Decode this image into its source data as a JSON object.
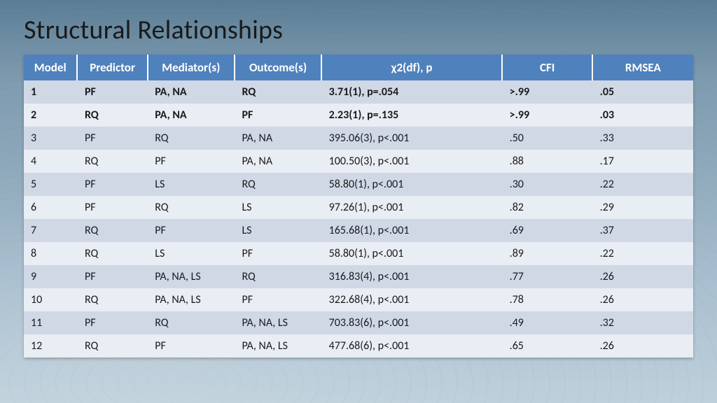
{
  "title": "Structural Relationships",
  "table": {
    "type": "table",
    "header_bg": "#4f81bd",
    "header_fg": "#ffffff",
    "row_odd_bg": "#d0d8e6",
    "row_even_bg": "#e9edf4",
    "text_color": "#1a1a1a",
    "header_fontsize": 17,
    "cell_fontsize": 16,
    "bold_rows": [
      0,
      1
    ],
    "column_widths_pct": [
      8.0,
      10.5,
      13.0,
      13.0,
      27.0,
      13.5,
      15.0
    ],
    "columns": [
      "Model",
      "Predictor",
      "Mediator(s)",
      "Outcome(s)",
      "χ2(df), p",
      "CFI",
      "RMSEA"
    ],
    "column_align": [
      "left",
      "left",
      "left",
      "left",
      "left",
      "left",
      "left"
    ],
    "header_align": [
      "center",
      "center",
      "center",
      "center",
      "center",
      "center",
      "center"
    ],
    "rows": [
      [
        "1",
        "PF",
        "PA, NA",
        "RQ",
        "3.71(1), p=.054",
        ">.99",
        ".05"
      ],
      [
        "2",
        "RQ",
        "PA, NA",
        "PF",
        "2.23(1), p=.135",
        ">.99",
        ".03"
      ],
      [
        "3",
        "PF",
        "RQ",
        "PA, NA",
        "395.06(3), p<.001",
        ".50",
        ".33"
      ],
      [
        "4",
        "RQ",
        "PF",
        "PA, NA",
        "100.50(3), p<.001",
        ".88",
        ".17"
      ],
      [
        "5",
        "PF",
        "LS",
        "RQ",
        "58.80(1), p<.001",
        ".30",
        ".22"
      ],
      [
        "6",
        "PF",
        "RQ",
        "LS",
        "97.26(1), p<.001",
        ".82",
        ".29"
      ],
      [
        "7",
        "RQ",
        "PF",
        "LS",
        "165.68(1), p<.001",
        ".69",
        ".37"
      ],
      [
        "8",
        "RQ",
        "LS",
        "PF",
        "58.80(1), p<.001",
        ".89",
        ".22"
      ],
      [
        "9",
        "PF",
        "PA, NA, LS",
        "RQ",
        "316.83(4), p<.001",
        ".77",
        ".26"
      ],
      [
        "10",
        "RQ",
        "PA, NA, LS",
        "PF",
        "322.68(4), p<.001",
        ".78",
        ".26"
      ],
      [
        "11",
        "PF",
        "RQ",
        "PA, NA, LS",
        "703.83(6), p<.001",
        ".49",
        ".32"
      ],
      [
        "12",
        "RQ",
        "PF",
        "PA, NA, LS",
        "477.68(6), p<.001",
        ".65",
        ".26"
      ]
    ]
  },
  "background": {
    "gradient_top": "#5a7d96",
    "gradient_bottom": "#bed0db"
  }
}
